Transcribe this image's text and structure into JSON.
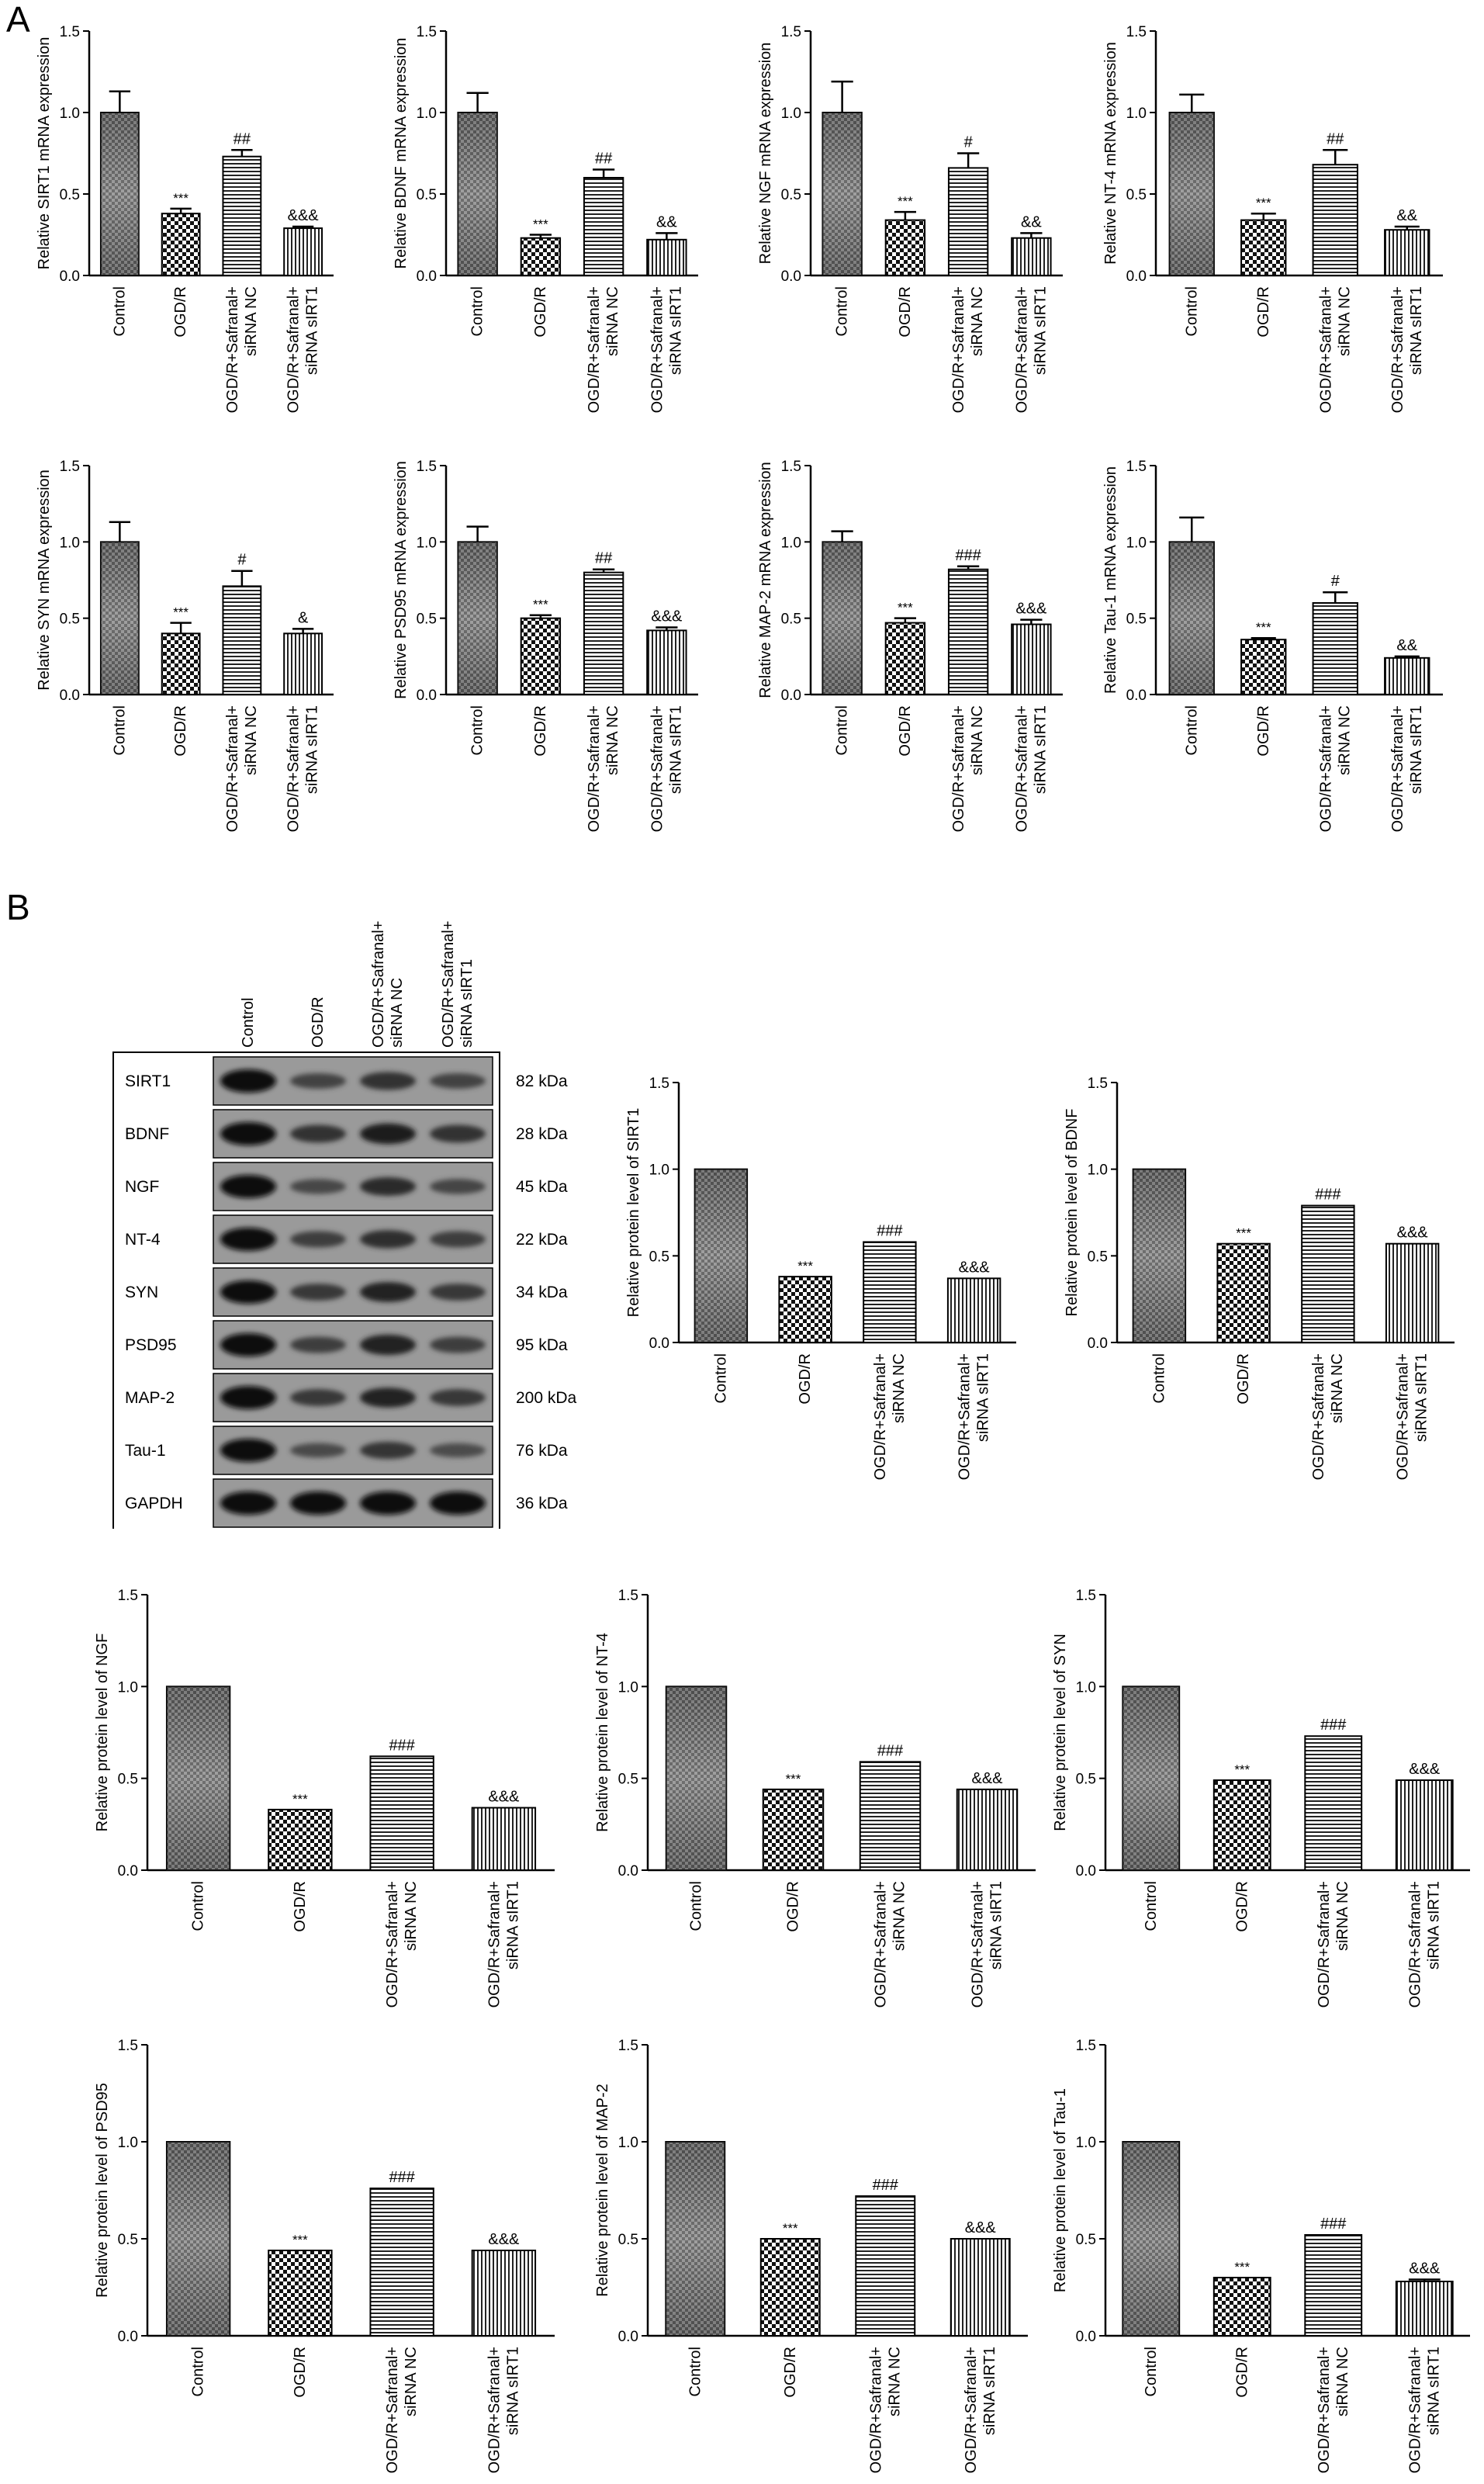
{
  "panels": {
    "a": "A",
    "b": "B"
  },
  "chart_data": [
    {
      "type": "bar",
      "id": "mrna-sirt1",
      "categories": [
        "Control",
        "OGD/R",
        "OGD/R+Safranal+\nsiRNA NC",
        "OGD/R+Safranal+\nsiRNA sIRT1"
      ],
      "values": [
        1.0,
        0.38,
        0.73,
        0.29
      ],
      "errors": [
        0.13,
        0.03,
        0.04,
        0.01
      ],
      "annotations": [
        "",
        "***",
        "##",
        "&&&"
      ],
      "ylabel": "Relative SIRT1 mRNA expression",
      "ylim": [
        0,
        1.5
      ],
      "yticks": [
        "0.0",
        "0.5",
        "1.0",
        "1.5"
      ]
    },
    {
      "type": "bar",
      "id": "mrna-bdnf",
      "categories": [
        "Control",
        "OGD/R",
        "OGD/R+Safranal+\nsiRNA NC",
        "OGD/R+Safranal+\nsiRNA sIRT1"
      ],
      "values": [
        1.0,
        0.23,
        0.6,
        0.22
      ],
      "errors": [
        0.12,
        0.02,
        0.05,
        0.04
      ],
      "annotations": [
        "",
        "***",
        "##",
        "&&"
      ],
      "ylabel": "Relative BDNF mRNA expression",
      "ylim": [
        0,
        1.5
      ],
      "yticks": [
        "0.0",
        "0.5",
        "1.0",
        "1.5"
      ]
    },
    {
      "type": "bar",
      "id": "mrna-ngf",
      "categories": [
        "Control",
        "OGD/R",
        "OGD/R+Safranal+\nsiRNA NC",
        "OGD/R+Safranal+\nsiRNA sIRT1"
      ],
      "values": [
        1.0,
        0.34,
        0.66,
        0.23
      ],
      "errors": [
        0.19,
        0.05,
        0.09,
        0.03
      ],
      "annotations": [
        "",
        "***",
        "#",
        "&&"
      ],
      "ylabel": "Relative NGF mRNA expression",
      "ylim": [
        0,
        1.5
      ],
      "yticks": [
        "0.0",
        "0.5",
        "1.0",
        "1.5"
      ]
    },
    {
      "type": "bar",
      "id": "mrna-nt4",
      "categories": [
        "Control",
        "OGD/R",
        "OGD/R+Safranal+\nsiRNA NC",
        "OGD/R+Safranal+\nsiRNA sIRT1"
      ],
      "values": [
        1.0,
        0.34,
        0.68,
        0.28
      ],
      "errors": [
        0.11,
        0.04,
        0.09,
        0.02
      ],
      "annotations": [
        "",
        "***",
        "##",
        "&&"
      ],
      "ylabel": "Relative NT-4 mRNA expression",
      "ylim": [
        0,
        1.5
      ],
      "yticks": [
        "0.0",
        "0.5",
        "1.0",
        "1.5"
      ]
    },
    {
      "type": "bar",
      "id": "mrna-syn",
      "categories": [
        "Control",
        "OGD/R",
        "OGD/R+Safranal+\nsiRNA NC",
        "OGD/R+Safranal+\nsiRNA sIRT1"
      ],
      "values": [
        1.0,
        0.4,
        0.71,
        0.4
      ],
      "errors": [
        0.13,
        0.07,
        0.1,
        0.03
      ],
      "annotations": [
        "",
        "***",
        "#",
        "&"
      ],
      "ylabel": "Relative SYN mRNA expression",
      "ylim": [
        0,
        1.5
      ],
      "yticks": [
        "0.0",
        "0.5",
        "1.0",
        "1.5"
      ]
    },
    {
      "type": "bar",
      "id": "mrna-psd95",
      "categories": [
        "Control",
        "OGD/R",
        "OGD/R+Safranal+\nsiRNA NC",
        "OGD/R+Safranal+\nsiRNA sIRT1"
      ],
      "values": [
        1.0,
        0.5,
        0.8,
        0.42
      ],
      "errors": [
        0.1,
        0.02,
        0.02,
        0.02
      ],
      "annotations": [
        "",
        "***",
        "##",
        "&&&"
      ],
      "ylabel": "Relative PSD95 mRNA expression",
      "ylim": [
        0,
        1.5
      ],
      "yticks": [
        "0.0",
        "0.5",
        "1.0",
        "1.5"
      ]
    },
    {
      "type": "bar",
      "id": "mrna-map2",
      "categories": [
        "Control",
        "OGD/R",
        "OGD/R+Safranal+\nsiRNA NC",
        "OGD/R+Safranal+\nsiRNA sIRT1"
      ],
      "values": [
        1.0,
        0.47,
        0.82,
        0.46
      ],
      "errors": [
        0.07,
        0.03,
        0.02,
        0.03
      ],
      "annotations": [
        "",
        "***",
        "###",
        "&&&"
      ],
      "ylabel": "Relative MAP-2 mRNA expression",
      "ylim": [
        0,
        1.5
      ],
      "yticks": [
        "0.0",
        "0.5",
        "1.0",
        "1.5"
      ]
    },
    {
      "type": "bar",
      "id": "mrna-tau1",
      "categories": [
        "Control",
        "OGD/R",
        "OGD/R+Safranal+\nsiRNA NC",
        "OGD/R+Safranal+\nsiRNA sIRT1"
      ],
      "values": [
        1.0,
        0.36,
        0.6,
        0.24
      ],
      "errors": [
        0.16,
        0.01,
        0.07,
        0.01
      ],
      "annotations": [
        "",
        "***",
        "#",
        "&&"
      ],
      "ylabel": "Relative Tau-1 mRNA expression",
      "ylim": [
        0,
        1.5
      ],
      "yticks": [
        "0.0",
        "0.5",
        "1.0",
        "1.5"
      ]
    },
    {
      "type": "bar",
      "id": "protein-sirt1",
      "categories": [
        "Control",
        "OGD/R",
        "OGD/R+Safranal+\nsiRNA NC",
        "OGD/R+Safranal+\nsiRNA sIRT1"
      ],
      "values": [
        1.0,
        0.38,
        0.58,
        0.37
      ],
      "errors": [
        0.0,
        0.0,
        0.0,
        0.0
      ],
      "annotations": [
        "",
        "***",
        "###",
        "&&&"
      ],
      "ylabel": "Relative protein level of SIRT1",
      "ylim": [
        0,
        1.5
      ],
      "yticks": [
        "0.0",
        "0.5",
        "1.0",
        "1.5"
      ]
    },
    {
      "type": "bar",
      "id": "protein-bdnf",
      "categories": [
        "Control",
        "OGD/R",
        "OGD/R+Safranal+\nsiRNA NC",
        "OGD/R+Safranal+\nsiRNA sIRT1"
      ],
      "values": [
        1.0,
        0.57,
        0.79,
        0.57
      ],
      "errors": [
        0.0,
        0.0,
        0.0,
        0.0
      ],
      "annotations": [
        "",
        "***",
        "###",
        "&&&"
      ],
      "ylabel": "Relative protein level of BDNF",
      "ylim": [
        0,
        1.5
      ],
      "yticks": [
        "0.0",
        "0.5",
        "1.0",
        "1.5"
      ]
    },
    {
      "type": "bar",
      "id": "protein-ngf",
      "categories": [
        "Control",
        "OGD/R",
        "OGD/R+Safranal+\nsiRNA NC",
        "OGD/R+Safranal+\nsiRNA sIRT1"
      ],
      "values": [
        1.0,
        0.33,
        0.62,
        0.34
      ],
      "errors": [
        0.0,
        0.0,
        0.0,
        0.0
      ],
      "annotations": [
        "",
        "***",
        "###",
        "&&&"
      ],
      "ylabel": "Relative protein level of NGF",
      "ylim": [
        0,
        1.5
      ],
      "yticks": [
        "0.0",
        "0.5",
        "1.0",
        "1.5"
      ]
    },
    {
      "type": "bar",
      "id": "protein-nt4",
      "categories": [
        "Control",
        "OGD/R",
        "OGD/R+Safranal+\nsiRNA NC",
        "OGD/R+Safranal+\nsiRNA sIRT1"
      ],
      "values": [
        1.0,
        0.44,
        0.59,
        0.44
      ],
      "errors": [
        0.0,
        0.0,
        0.0,
        0.0
      ],
      "annotations": [
        "",
        "***",
        "###",
        "&&&"
      ],
      "ylabel": "Relative protein level of NT-4",
      "ylim": [
        0,
        1.5
      ],
      "yticks": [
        "0.0",
        "0.5",
        "1.0",
        "1.5"
      ]
    },
    {
      "type": "bar",
      "id": "protein-syn",
      "categories": [
        "Control",
        "OGD/R",
        "OGD/R+Safranal+\nsiRNA NC",
        "OGD/R+Safranal+\nsiRNA sIRT1"
      ],
      "values": [
        1.0,
        0.49,
        0.73,
        0.49
      ],
      "errors": [
        0.0,
        0.0,
        0.0,
        0.0
      ],
      "annotations": [
        "",
        "***",
        "###",
        "&&&"
      ],
      "ylabel": "Relative protein level of SYN",
      "ylim": [
        0,
        1.5
      ],
      "yticks": [
        "0.0",
        "0.5",
        "1.0",
        "1.5"
      ]
    },
    {
      "type": "bar",
      "id": "protein-psd95",
      "categories": [
        "Control",
        "OGD/R",
        "OGD/R+Safranal+\nsiRNA NC",
        "OGD/R+Safranal+\nsiRNA sIRT1"
      ],
      "values": [
        1.0,
        0.44,
        0.76,
        0.44
      ],
      "errors": [
        0.0,
        0.0,
        0.0,
        0.0
      ],
      "annotations": [
        "",
        "***",
        "###",
        "&&&"
      ],
      "ylabel": "Relative protein level of PSD95",
      "ylim": [
        0,
        1.5
      ],
      "yticks": [
        "0.0",
        "0.5",
        "1.0",
        "1.5"
      ]
    },
    {
      "type": "bar",
      "id": "protein-map2",
      "categories": [
        "Control",
        "OGD/R",
        "OGD/R+Safranal+\nsiRNA NC",
        "OGD/R+Safranal+\nsiRNA sIRT1"
      ],
      "values": [
        1.0,
        0.5,
        0.72,
        0.5
      ],
      "errors": [
        0.0,
        0.0,
        0.0,
        0.0
      ],
      "annotations": [
        "",
        "***",
        "###",
        "&&&"
      ],
      "ylabel": "Relative protein level of MAP-2",
      "ylim": [
        0,
        1.5
      ],
      "yticks": [
        "0.0",
        "0.5",
        "1.0",
        "1.5"
      ]
    },
    {
      "type": "bar",
      "id": "protein-tau1",
      "categories": [
        "Control",
        "OGD/R",
        "OGD/R+Safranal+\nsiRNA NC",
        "OGD/R+Safranal+\nsiRNA sIRT1"
      ],
      "values": [
        1.0,
        0.3,
        0.52,
        0.28
      ],
      "errors": [
        0.0,
        0.0,
        0.0,
        0.01
      ],
      "annotations": [
        "",
        "***",
        "###",
        "&&&"
      ],
      "ylabel": "Relative protein level of Tau-1",
      "ylim": [
        0,
        1.5
      ],
      "yticks": [
        "0.0",
        "0.5",
        "1.0",
        "1.5"
      ]
    }
  ],
  "western_blot": {
    "lanes": [
      "Control",
      "OGD/R",
      "OGD/R+Safranal+\nsiRNA NC",
      "OGD/R+Safranal+\nsiRNA sIRT1"
    ],
    "bands": [
      {
        "protein": "SIRT1",
        "kda": "82 kDa",
        "intensity": [
          1.0,
          0.38,
          0.58,
          0.37
        ]
      },
      {
        "protein": "BDNF",
        "kda": "28 kDa",
        "intensity": [
          1.0,
          0.57,
          0.79,
          0.57
        ]
      },
      {
        "protein": "NGF",
        "kda": "45 kDa",
        "intensity": [
          1.0,
          0.33,
          0.62,
          0.34
        ]
      },
      {
        "protein": "NT-4",
        "kda": "22 kDa",
        "intensity": [
          1.0,
          0.44,
          0.59,
          0.44
        ]
      },
      {
        "protein": "SYN",
        "kda": "34 kDa",
        "intensity": [
          1.0,
          0.49,
          0.73,
          0.49
        ]
      },
      {
        "protein": "PSD95",
        "kda": "95 kDa",
        "intensity": [
          1.0,
          0.44,
          0.76,
          0.44
        ]
      },
      {
        "protein": "MAP-2",
        "kda": "200 kDa",
        "intensity": [
          1.0,
          0.5,
          0.72,
          0.5
        ]
      },
      {
        "protein": "Tau-1",
        "kda": "76 kDa",
        "intensity": [
          1.0,
          0.3,
          0.52,
          0.28
        ]
      },
      {
        "protein": "GAPDH",
        "kda": "36 kDa",
        "intensity": [
          1.0,
          1.0,
          1.0,
          1.0
        ]
      }
    ]
  }
}
